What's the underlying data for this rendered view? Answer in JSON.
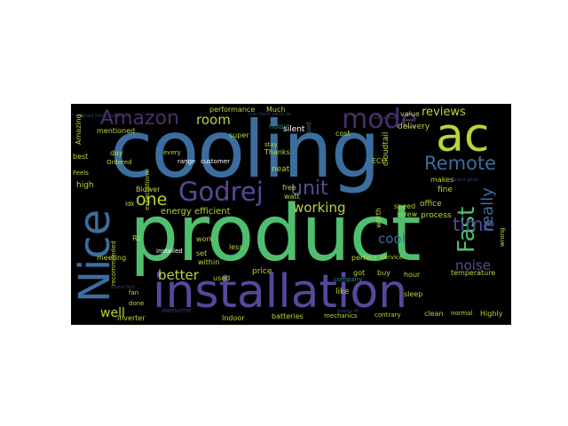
{
  "words": [
    "cooling",
    "product",
    "installation",
    "Nice",
    "ac",
    "mode",
    "Amazon",
    "Godrej",
    "unit",
    "Fast",
    "Remote",
    "reviews",
    "time",
    "one",
    "room",
    "working",
    "noise",
    "cool",
    "really",
    "better",
    "well",
    "energy efficient",
    "performance",
    "Much",
    "silent",
    "noisy",
    "Thanks",
    "neat",
    "free",
    "watt",
    "value",
    "delivery",
    "speed",
    "office",
    "process",
    "fine",
    "makes",
    "Blower",
    "Idk",
    "installed",
    "work",
    "less",
    "set",
    "within",
    "Rs",
    "recommended",
    "expectations",
    "meeting",
    "fan",
    "done",
    "inverter",
    "Indoor",
    "batteries",
    "mechanics",
    "contrary",
    "clean",
    "normal",
    "Highly",
    "temperature",
    "sleep",
    "hour",
    "got",
    "buy",
    "perfect",
    "service",
    "company",
    "price",
    "like",
    "used",
    "best",
    "day",
    "Ordered",
    "high",
    "Feels",
    "super",
    "stay",
    "cost",
    "ECO",
    "cloudtail",
    "customer",
    "range",
    "every",
    "Amazing",
    "mentioned",
    "good",
    "wrong",
    "Awesome",
    "worth",
    "screw"
  ],
  "colors": {
    "page_background": "#ffffff",
    "cloud_background": "#000000",
    "palette": [
      "#3b6e9e",
      "#4fbf6f",
      "#56489a",
      "#b6d63a",
      "#4b2f6e",
      "#2f8f8a",
      "#ffffff"
    ]
  }
}
